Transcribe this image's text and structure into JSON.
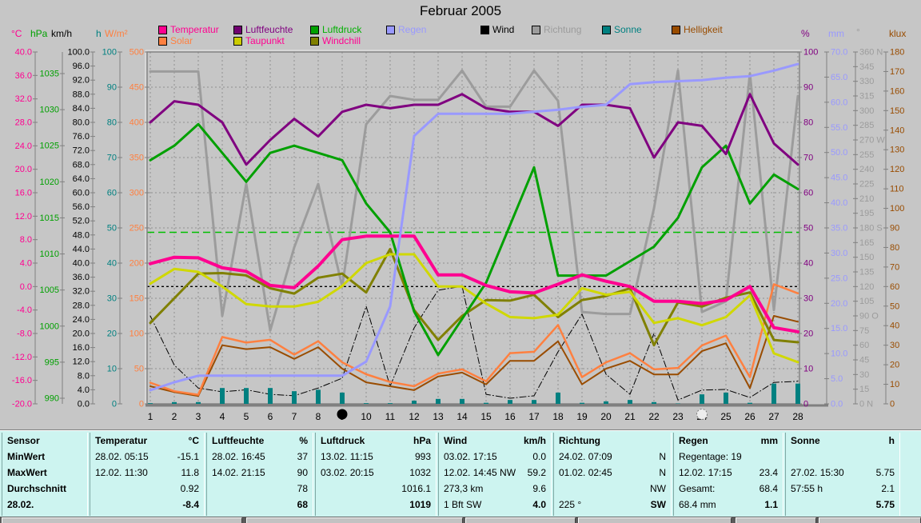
{
  "title": "Februar 2005",
  "legend": {
    "items": [
      {
        "label": "Temperatur",
        "swatch": "#FF0090",
        "text_color": "#FF0090"
      },
      {
        "label": "Luftfeuchte",
        "swatch": "#700070",
        "text_color": "#800080"
      },
      {
        "label": "Luftdruck",
        "swatch": "#00A000",
        "text_color": "#00B000"
      },
      {
        "label": "Regen",
        "swatch": "#9999FF",
        "text_color": "#9999FF"
      },
      {
        "label": "Wind",
        "swatch": "#000000",
        "text_color": "#000000"
      },
      {
        "label": "Richtung",
        "swatch": "#9C9C9C",
        "text_color": "#9C9C9C"
      },
      {
        "label": "Sonne",
        "swatch": "#008080",
        "text_color": "#008080"
      },
      {
        "label": "Helligkeit",
        "swatch": "#994C00",
        "text_color": "#994C00"
      },
      {
        "label": "Solar",
        "swatch": "#FF8040",
        "text_color": "#FF8040"
      },
      {
        "label": "Taupunkt",
        "swatch": "#CCCC00",
        "text_color": "#FF0090"
      },
      {
        "label": "Windchill",
        "swatch": "#808000",
        "text_color": "#FF0090"
      }
    ]
  },
  "units_left": [
    {
      "text": "°C",
      "color": "#FF0090"
    },
    {
      "text": "hPa",
      "color": "#00A000"
    },
    {
      "text": "km/h",
      "color": "#000000"
    },
    {
      "text": "h",
      "color": "#008080"
    },
    {
      "text": "W/m²",
      "color": "#FF8040"
    }
  ],
  "units_right": [
    {
      "text": "%",
      "color": "#800080"
    },
    {
      "text": "mm",
      "color": "#9999FF"
    },
    {
      "text": "°",
      "color": "#9C9C9C"
    },
    {
      "text": "klux",
      "color": "#994C00"
    }
  ],
  "axes_left": [
    {
      "unit": "°C",
      "scale": "temp",
      "color": "#FF0090",
      "ticks": [
        "40.0",
        "36.0",
        "32.0",
        "28.0",
        "24.0",
        "20.0",
        "16.0",
        "12.0",
        "8.0",
        "4.0",
        "0.0",
        "-4.0",
        "-8.0",
        "-12.0",
        "-16.0",
        "-20.0"
      ]
    },
    {
      "unit": "hPa",
      "scale": "hpa",
      "color": "#00A000",
      "ticks": [
        "1035",
        "1030",
        "1025",
        "1020",
        "1015",
        "1010",
        "1005",
        "1000",
        "995",
        "990"
      ]
    },
    {
      "unit": "km/h",
      "scale": "kmh",
      "color": "#000000",
      "ticks": [
        "100.0",
        "96.0",
        "92.0",
        "88.0",
        "84.0",
        "80.0",
        "76.0",
        "72.0",
        "68.0",
        "64.0",
        "60.0",
        "56.0",
        "52.0",
        "48.0",
        "44.0",
        "40.0",
        "36.0",
        "32.0",
        "28.0",
        "24.0",
        "20.0",
        "16.0",
        "12.0",
        "8.0",
        "4.0",
        "0.0"
      ]
    },
    {
      "unit": "h",
      "scale": "hours",
      "color": "#008080",
      "ticks": [
        "100",
        "90",
        "80",
        "70",
        "60",
        "50",
        "40",
        "30",
        "20",
        "10",
        "0"
      ]
    },
    {
      "unit": "W/m²",
      "scale": "wm2",
      "color": "#FF8040",
      "ticks": [
        "500",
        "450",
        "400",
        "350",
        "300",
        "250",
        "200",
        "150",
        "100",
        "50",
        "0"
      ]
    }
  ],
  "axes_right": [
    {
      "unit": "%",
      "scale": "pct",
      "color": "#800080",
      "ticks": [
        "100",
        "90",
        "80",
        "70",
        "60",
        "50",
        "40",
        "30",
        "20",
        "10",
        "0"
      ]
    },
    {
      "unit": "mm",
      "scale": "mm",
      "color": "#9999FF",
      "ticks": [
        "70.0",
        "65.0",
        "60.0",
        "55.0",
        "50.0",
        "45.0",
        "40.0",
        "35.0",
        "30.0",
        "25.0",
        "20.0",
        "15.0",
        "10.0",
        "5.0",
        "0.0"
      ]
    },
    {
      "unit": "°",
      "scale": "deg",
      "color": "#9C9C9C",
      "ticks": [
        "360 N",
        "345",
        "330",
        "315",
        "300",
        "285",
        "270 W",
        "255",
        "240",
        "225",
        "210",
        "195",
        "180 S",
        "165",
        "150",
        "135",
        "120",
        "105",
        "90 O",
        "75",
        "60",
        "45",
        "30",
        "15",
        "0 N"
      ]
    },
    {
      "unit": "klux",
      "scale": "klux",
      "color": "#994C00",
      "ticks": [
        "180",
        "170",
        "160",
        "150",
        "140",
        "130",
        "120",
        "110",
        "100",
        "90",
        "80",
        "70",
        "60",
        "50",
        "40",
        "30",
        "20",
        "10",
        "0"
      ]
    }
  ],
  "chart_data": {
    "type": "line",
    "title": "Februar 2005",
    "x": [
      1,
      2,
      3,
      4,
      5,
      6,
      7,
      8,
      9,
      10,
      11,
      12,
      13,
      14,
      15,
      16,
      17,
      18,
      19,
      20,
      21,
      22,
      23,
      24,
      25,
      26,
      27,
      28
    ],
    "grid": "dashed",
    "axis_scales": {
      "temp": {
        "min": -20,
        "max": 40,
        "unit": "°C"
      },
      "hpa": {
        "min": 990,
        "max": 1035,
        "unit": "hPa"
      },
      "kmh": {
        "min": 0,
        "max": 100,
        "unit": "km/h"
      },
      "hours": {
        "min": 0,
        "max": 100,
        "unit": "h"
      },
      "wm2": {
        "min": 0,
        "max": 500,
        "unit": "W/m²"
      },
      "pct": {
        "min": 0,
        "max": 100,
        "unit": "%"
      },
      "mm": {
        "min": 0,
        "max": 70,
        "unit": "mm"
      },
      "deg": {
        "min": 0,
        "max": 360,
        "unit": "°"
      },
      "klux": {
        "min": 0,
        "max": 180,
        "unit": "klux"
      }
    },
    "series": [
      {
        "name": "Richtung",
        "scale": "deg",
        "color": "#9C9C9C",
        "values": [
          340,
          340,
          340,
          90,
          225,
          75,
          160,
          225,
          120,
          286,
          315,
          311,
          311,
          341,
          304,
          304,
          341,
          310,
          94,
          92,
          92,
          200,
          341,
          94,
          105,
          338,
          96,
          315
        ]
      },
      {
        "name": "Wind",
        "scale": "kmh",
        "color": "#000000",
        "values": [
          25,
          11,
          4.5,
          3.4,
          4,
          2.7,
          2.3,
          4.5,
          7.3,
          27.7,
          5,
          21.6,
          32.3,
          33.4,
          2.7,
          1.6,
          2.3,
          14.8,
          25.5,
          8.4,
          2.7,
          20,
          1.1,
          3.9,
          4.1,
          1.8,
          6.1,
          6.4
        ]
      },
      {
        "name": "Sonne",
        "scale": "hours",
        "color": "#008080",
        "type": "bar",
        "values": [
          0.2,
          0.5,
          0.5,
          4.5,
          4.5,
          4.5,
          3.6,
          4.0,
          3.2,
          0.2,
          0.2,
          0.9,
          1.4,
          1.4,
          0.3,
          1.1,
          1.1,
          3.2,
          0.3,
          0.7,
          1.1,
          0.5,
          0.1,
          2.7,
          3.2,
          0.3,
          5.75,
          5.75
        ]
      },
      {
        "name": "Helligkeit",
        "scale": "klux",
        "color": "#994C00",
        "values": [
          9,
          6,
          4,
          30,
          28,
          29,
          23,
          29,
          18,
          11,
          9,
          7,
          14,
          16,
          10,
          22,
          22,
          32,
          10,
          18,
          22,
          15,
          15,
          27,
          31,
          8,
          45,
          42
        ]
      },
      {
        "name": "Solar",
        "scale": "wm2",
        "color": "#FF8040",
        "values": [
          30,
          18,
          13,
          95,
          87,
          91,
          70,
          89,
          59,
          42,
          31,
          25,
          43,
          49,
          32,
          72,
          74,
          112,
          38,
          59,
          72,
          49,
          51,
          83,
          97,
          38,
          170,
          157
        ]
      },
      {
        "name": "Windchill",
        "scale": "temp",
        "color": "#808000",
        "values": [
          -6.2,
          -2.0,
          2.2,
          2.3,
          1.9,
          -0.3,
          -1.2,
          1.5,
          2.2,
          -1.0,
          6.4,
          -4.0,
          -9.1,
          -5.0,
          -2.3,
          -2.4,
          -1.4,
          -5.2,
          -2.3,
          -1.6,
          -0.3,
          -10.0,
          -2.7,
          -3.4,
          -1.9,
          -1.0,
          -9.1,
          -9.5
        ]
      },
      {
        "name": "Taupunkt",
        "scale": "temp",
        "color": "#D0D800",
        "values": [
          0.5,
          3.0,
          2.5,
          0.0,
          -3.0,
          -3.4,
          -3.4,
          -2.6,
          0.1,
          4.0,
          5.5,
          5.5,
          0.0,
          0.0,
          -2.9,
          -5.2,
          -5.4,
          -4.8,
          -0.3,
          -1.4,
          -0.9,
          -6.2,
          -5.4,
          -6.6,
          -5.2,
          -1.5,
          -11.4,
          -12.9
        ]
      },
      {
        "name": "Luftdruck",
        "scale": "hpa",
        "color": "#00A000",
        "values": [
          1023,
          1025,
          1028,
          1024,
          1020,
          1024,
          1025,
          1024,
          1023,
          1017,
          1013,
          1002,
          996,
          1001,
          1006,
          1014,
          1022,
          1007,
          1007,
          1007,
          1009,
          1011,
          1015,
          1022,
          1025,
          1017,
          1021,
          1019
        ]
      },
      {
        "name": "Luftfeuchte",
        "scale": "pct",
        "color": "#800080",
        "values": [
          80,
          86,
          85,
          80,
          68,
          75,
          81,
          76,
          83,
          85,
          84,
          85,
          85,
          88,
          84,
          83,
          83,
          79,
          85,
          85,
          84,
          70,
          80,
          79,
          71,
          88,
          74,
          68
        ]
      },
      {
        "name": "Temperatur",
        "scale": "temp",
        "color": "#FF0090",
        "values": [
          3.9,
          5.0,
          4.9,
          3.2,
          2.6,
          0.2,
          -0.2,
          3.5,
          8.0,
          8.6,
          8.6,
          8.6,
          2.0,
          2.0,
          0.2,
          -0.9,
          -1.1,
          0.4,
          2.0,
          0.9,
          0.0,
          -2.5,
          -2.5,
          -2.9,
          -2.3,
          0.0,
          -7.0,
          -7.7
        ]
      },
      {
        "name": "Regen",
        "scale": "mm",
        "color": "#9999FF",
        "note": "cumulative monthly rain",
        "values": [
          2.7,
          4.3,
          5.6,
          5.6,
          5.6,
          5.6,
          5.6,
          5.6,
          5.6,
          8.4,
          19.4,
          53.3,
          57.7,
          57.7,
          57.7,
          57.7,
          58.1,
          58.5,
          59.1,
          59.5,
          63.6,
          64.0,
          64.2,
          64.4,
          64.9,
          65.2,
          66.3,
          67.6
        ]
      }
    ],
    "reference_lines": [
      {
        "scale": "hpa",
        "value": 1013,
        "color": "#00C000",
        "dash": "9 5"
      },
      {
        "scale": "temp",
        "value": 0,
        "color": "#000000",
        "dash": "3 3"
      }
    ],
    "moon_markers": [
      {
        "day": 9,
        "phase": "new-moon"
      },
      {
        "day": 24,
        "phase": "full-moon"
      }
    ]
  },
  "table": {
    "row_labels": [
      "Sensor",
      "MinWert",
      "MaxWert",
      "Durchschnitt",
      "28.02."
    ],
    "columns": [
      {
        "header": "Temperatur",
        "unit": "°C",
        "cells": [
          [
            "28.02. 05:15",
            "-15.1"
          ],
          [
            "12.02. 11:30",
            "11.8"
          ],
          [
            "",
            "0.92"
          ],
          [
            "",
            "-8.4"
          ]
        ]
      },
      {
        "header": "Luftfeuchte",
        "unit": "%",
        "cells": [
          [
            "28.02. 16:45",
            "37"
          ],
          [
            "14.02. 21:15",
            "90"
          ],
          [
            "",
            "78"
          ],
          [
            "",
            "68"
          ]
        ]
      },
      {
        "header": "Luftdruck",
        "unit": "hPa",
        "cells": [
          [
            "13.02. 11:15",
            "993"
          ],
          [
            "03.02. 20:15",
            "1032"
          ],
          [
            "",
            "1016.1"
          ],
          [
            "",
            "1019"
          ]
        ]
      },
      {
        "header": "Wind",
        "unit": "km/h",
        "cells": [
          [
            "03.02. 17:15",
            "0.0"
          ],
          [
            "12.02. 14:45 NW",
            "59.2"
          ],
          [
            "273,3 km",
            "9.6"
          ],
          [
            "1 Bft SW",
            "4.0"
          ]
        ]
      },
      {
        "header": "Richtung",
        "unit": "",
        "cells": [
          [
            "24.02. 07:09",
            "N"
          ],
          [
            "01.02. 02:45",
            "N"
          ],
          [
            "",
            "NW"
          ],
          [
            "225 °",
            "SW"
          ]
        ]
      },
      {
        "header": "Regen",
        "unit": "mm",
        "cells": [
          [
            "Regentage: 19",
            ""
          ],
          [
            "12.02. 17:15",
            "23.4"
          ],
          [
            "Gesamt:",
            "68.4"
          ],
          [
            "68.4 mm",
            "1.1"
          ]
        ]
      },
      {
        "header": "Sonne",
        "unit": "h",
        "cells": [
          [
            "",
            ""
          ],
          [
            "27.02. 15:30",
            "5.75"
          ],
          [
            "57:55 h",
            "2.1"
          ],
          [
            "",
            "5.75"
          ]
        ]
      }
    ]
  },
  "colors": {
    "background": "#C6C6C6",
    "grid": "#909090",
    "axis_line": "#808080",
    "table_background": "#CDF4F0"
  }
}
